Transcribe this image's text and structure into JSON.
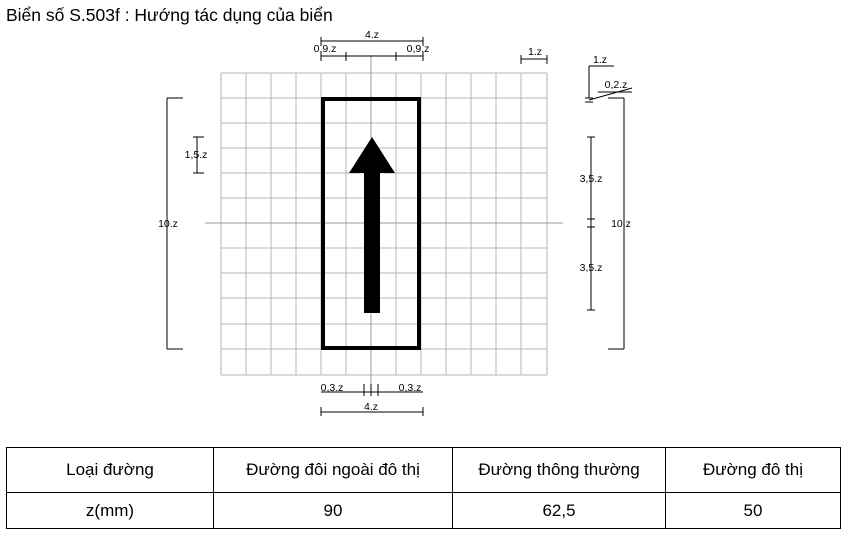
{
  "title": "Biển số S.503f : Hướng tác dụng của biển",
  "dimensions": {
    "top_width": "4.z",
    "top_left": "0,9.z",
    "top_right": "0,9.z",
    "cell": "1.z",
    "side_1": "1.z",
    "side_02": "0,2.z",
    "left_15": "1,5.z",
    "left_10": "10.z",
    "right_10": "10.z",
    "right_35_top": "3,5.z",
    "right_35_bottom": "3,5.z",
    "bottom_left": "0,3.z",
    "bottom_right": "0,3.z",
    "bottom_width": "4.z"
  },
  "table": {
    "headers": [
      "Loại đường",
      "Đường đôi ngoài đô thị",
      "Đường thông thường",
      "Đường đô thị"
    ],
    "row": [
      "z(mm)",
      "90",
      "62,5",
      "50"
    ]
  }
}
